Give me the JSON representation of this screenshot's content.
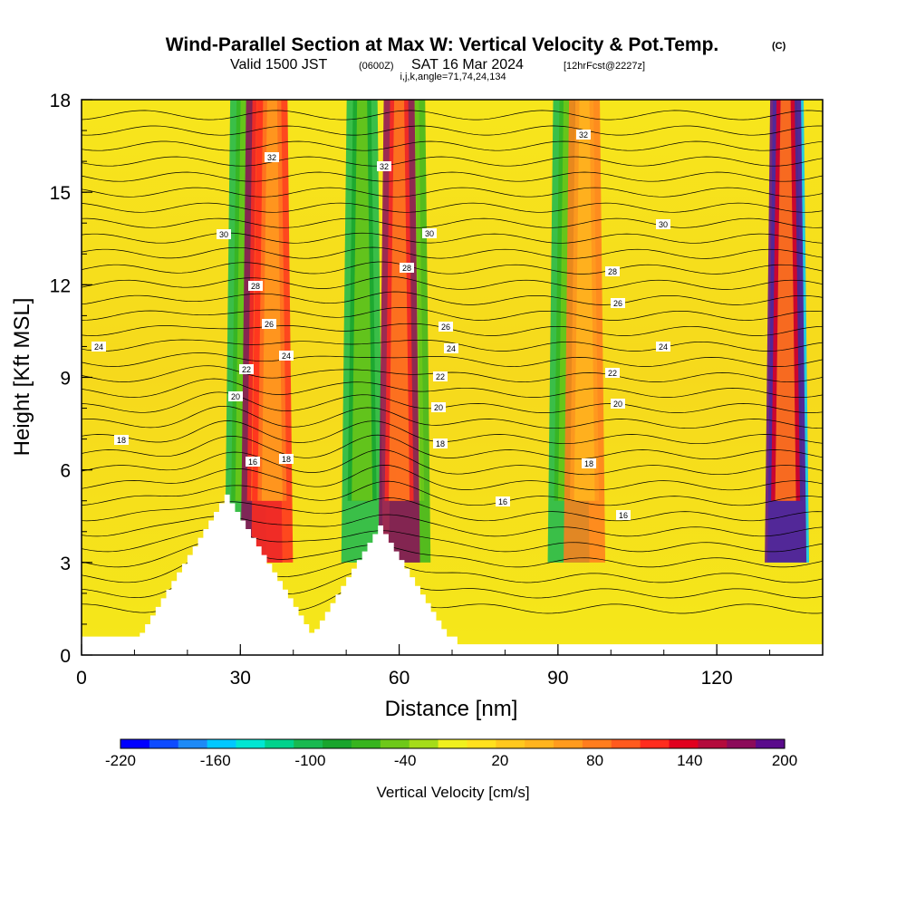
{
  "header": {
    "title": "Wind-Parallel Section at Max W: Vertical Velocity & Pot.Temp.",
    "copyright": "(C)",
    "valid_prefix": "Valid 1500 JST",
    "valid_utc": "(0600Z)",
    "valid_date": "SAT 16 Mar 2024",
    "forecast": "[12hrFcst@2227z]",
    "indices": "i,j,k,angle=71,74,24,134"
  },
  "chart_data": {
    "type": "heatmap",
    "title": "Wind-Parallel Section at Max W: Vertical Velocity & Pot.Temp.",
    "xlabel": "Distance [nm]",
    "ylabel": "Height [Kft MSL]",
    "xlim": [
      0,
      140
    ],
    "ylim": [
      0,
      18
    ],
    "x_ticks": [
      "0",
      "30",
      "60",
      "90",
      "120"
    ],
    "y_ticks": [
      "0",
      "3",
      "6",
      "9",
      "12",
      "15",
      "18"
    ],
    "colorbar": {
      "label": "Vertical Velocity [cm/s]",
      "range": [
        -220,
        200
      ],
      "tick_labels": [
        "-220",
        "-160",
        "-100",
        "-40",
        "20",
        "80",
        "140",
        "200"
      ],
      "colors": [
        "#0000ff",
        "#0d4bff",
        "#1d8af6",
        "#00c8ff",
        "#00e6d2",
        "#00d28c",
        "#19b950",
        "#19a52d",
        "#37b41e",
        "#6ec819",
        "#a5dc19",
        "#f0f01e",
        "#ffe11e",
        "#ffc81e",
        "#ffb41e",
        "#ff9b1e",
        "#ff7d1e",
        "#ff5a1e",
        "#ff2d1e",
        "#e1001e",
        "#b40a3c",
        "#8c0a5a",
        "#5a0a8c"
      ]
    },
    "theta_contour_labels": [
      "16",
      "18",
      "20",
      "22",
      "24",
      "26",
      "28",
      "30",
      "32"
    ],
    "updraft_columns": [
      {
        "x": 34,
        "w": 170
      },
      {
        "x": 60,
        "w": 180
      },
      {
        "x": 36,
        "w": 120
      },
      {
        "x": 95,
        "w": 90
      },
      {
        "x": 133,
        "w": 200
      }
    ],
    "downdraft_columns": [
      {
        "x": 31,
        "w": -100
      },
      {
        "x": 53,
        "w": -110
      },
      {
        "x": 62,
        "w": -60
      },
      {
        "x": 92,
        "w": -100
      },
      {
        "x": 133.5,
        "w": -160
      }
    ],
    "terrain_peaks": [
      {
        "x": 27,
        "height": 5.2
      },
      {
        "x": 56,
        "height": 4.2
      }
    ]
  }
}
